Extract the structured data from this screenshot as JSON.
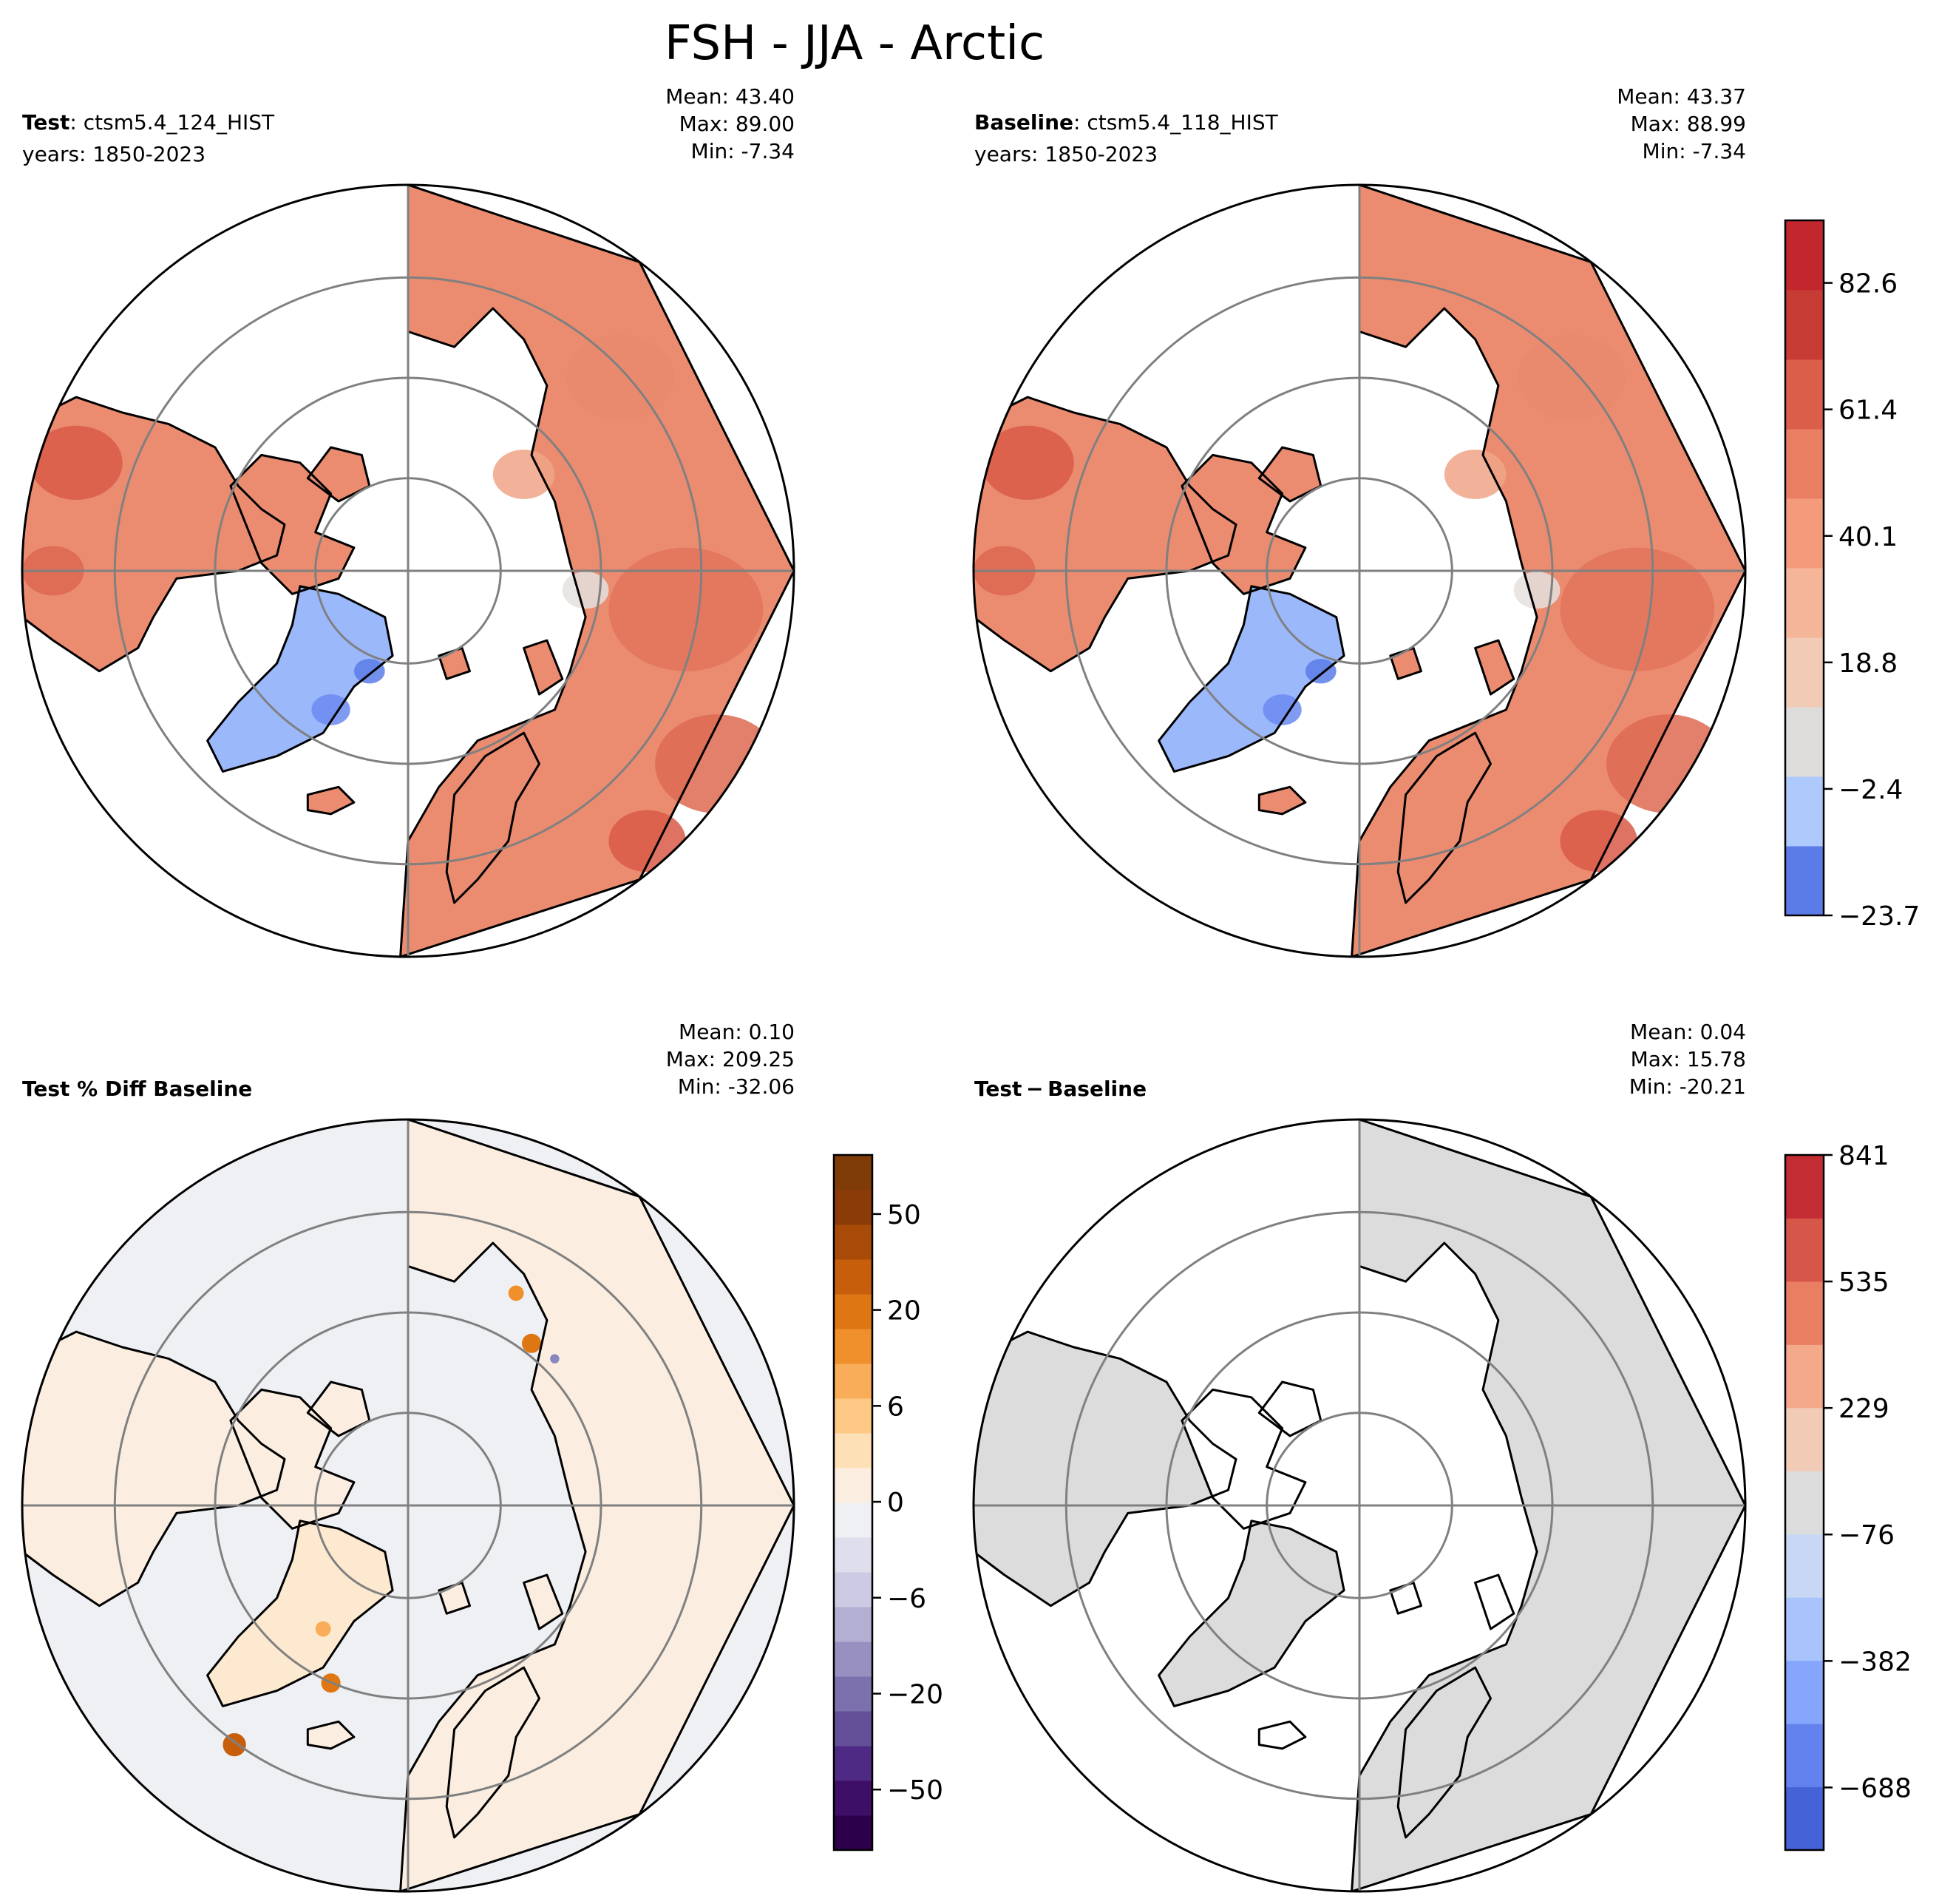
{
  "title": "FSH - JJA - Arctic",
  "colors": {
    "land_outline": "#000000",
    "gridline": "#808080",
    "ocean_bg": "#ffffff",
    "no_change_fill": "#dcdcdc",
    "pct_bg": "#eff0f4",
    "pct_pos_light": "#fbeee0"
  },
  "panels": [
    {
      "id": "test",
      "label_bold": "Test",
      "label_rest": ": ctsm5.4_124_HIST",
      "years": "years: 1850-2023",
      "stats": {
        "mean": "Mean: 43.40",
        "max": "Max: 89.00",
        "min": "Min: -7.34"
      },
      "colorbar": null
    },
    {
      "id": "baseline",
      "label_bold": "Baseline",
      "label_rest": ": ctsm5.4_118_HIST",
      "years": "years: 1850-2023",
      "stats": {
        "mean": "Mean: 43.37",
        "max": "Max: 88.99",
        "min": "Min: -7.34"
      },
      "colorbar": {
        "ticks": [
          "82.6",
          "61.4",
          "40.1",
          "18.8",
          "−2.4",
          "−23.7"
        ],
        "colors": [
          "#5b7ce6",
          "#aec9fc",
          "#dddcdb",
          "#f2cbb7",
          "#f5b598",
          "#f39b7b",
          "#ea7e63",
          "#db5e4b",
          "#c73b35",
          "#c1272d"
        ]
      }
    },
    {
      "id": "pctdiff",
      "label_bold": "Test % Diff Baseline",
      "label_rest": "",
      "years": "",
      "stats": {
        "mean": "Mean:  0.10",
        "max": "Max: 209.25",
        "min": "Min: -32.06"
      },
      "colorbar": {
        "ticks": [
          "50",
          "20",
          "6",
          "0",
          "−6",
          "−20",
          "−50"
        ],
        "colors": [
          "#2d004b",
          "#3d0f66",
          "#4f2a84",
          "#645098",
          "#7d71ad",
          "#9890c1",
          "#b3afd3",
          "#cdcae3",
          "#dfdeec",
          "#eff0f4",
          "#fbeee0",
          "#fde0b6",
          "#fdc985",
          "#f9ad58",
          "#f0902c",
          "#df7614",
          "#c65e0b",
          "#a84b08",
          "#8a3b07",
          "#7f3b08"
        ]
      }
    },
    {
      "id": "diff",
      "label_bold": "Test − Baseline",
      "label_rest": "",
      "years": "",
      "stats": {
        "mean": "Mean:  0.04",
        "max": "Max: 15.78",
        "min": "Min: -20.21"
      },
      "colorbar": {
        "ticks": [
          "841",
          "535",
          "229",
          "−76",
          "−382",
          "−688"
        ],
        "colors": [
          "#4562d6",
          "#6382ee",
          "#86a6fd",
          "#a9c4fd",
          "#c8d8f4",
          "#dcdcdc",
          "#f2cbb7",
          "#f4a98b",
          "#ea7e63",
          "#d65749",
          "#c32c33"
        ]
      }
    }
  ]
}
